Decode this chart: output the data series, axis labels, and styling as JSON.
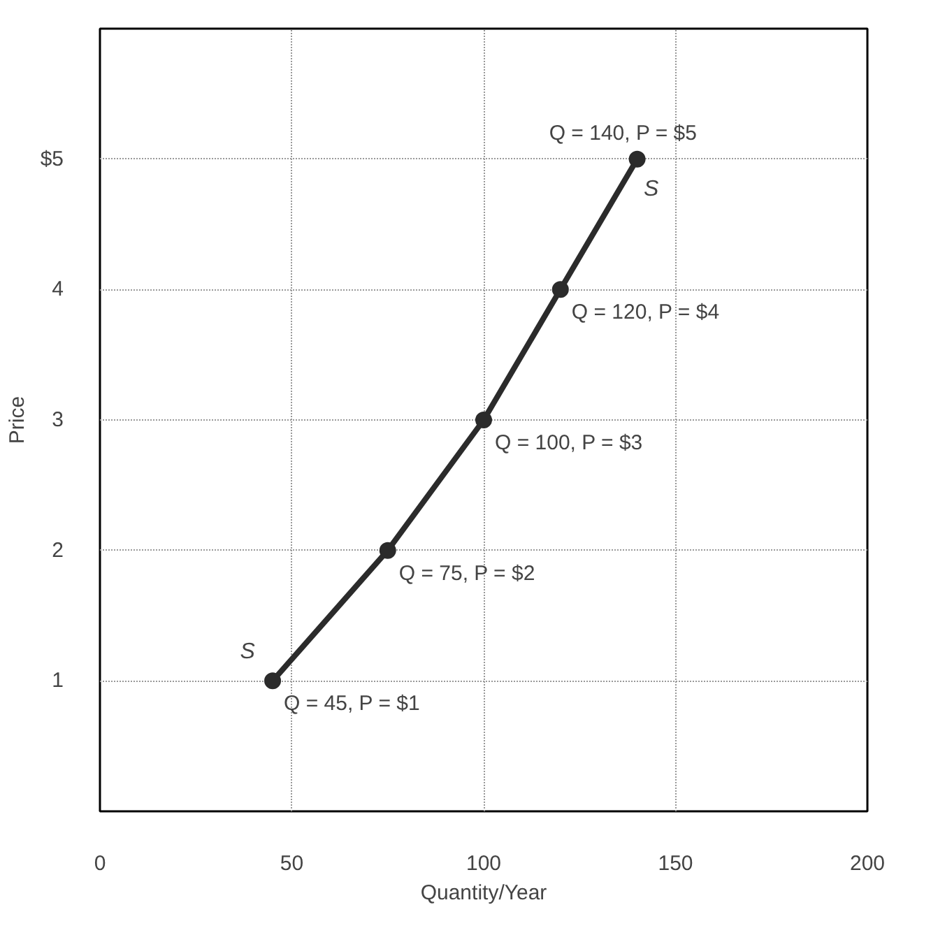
{
  "chart_data": {
    "type": "line",
    "xlabel": "Quantity/Year",
    "ylabel": "Price",
    "x": [
      45,
      75,
      100,
      120,
      140
    ],
    "series": [
      {
        "color": "#2b2b2b",
        "values": [
          1,
          2,
          3,
          4,
          5
        ],
        "value_labels": [
          "Q = 45, P = $1",
          "Q = 75, P = $2",
          "Q = 100, P = $3",
          "Q = 120, P = $4",
          "Q = 140, P = $5"
        ]
      }
    ],
    "xlim": [
      0,
      200
    ],
    "ylim": [
      0,
      6
    ],
    "xticks": [
      0,
      50,
      100,
      150,
      200
    ],
    "yticks": [
      1,
      2,
      3,
      4,
      {
        "value": 5,
        "label": "$5"
      }
    ],
    "annotations": [
      "S",
      "S"
    ],
    "grid": true,
    "marker": "circle",
    "line_style": "solid"
  }
}
